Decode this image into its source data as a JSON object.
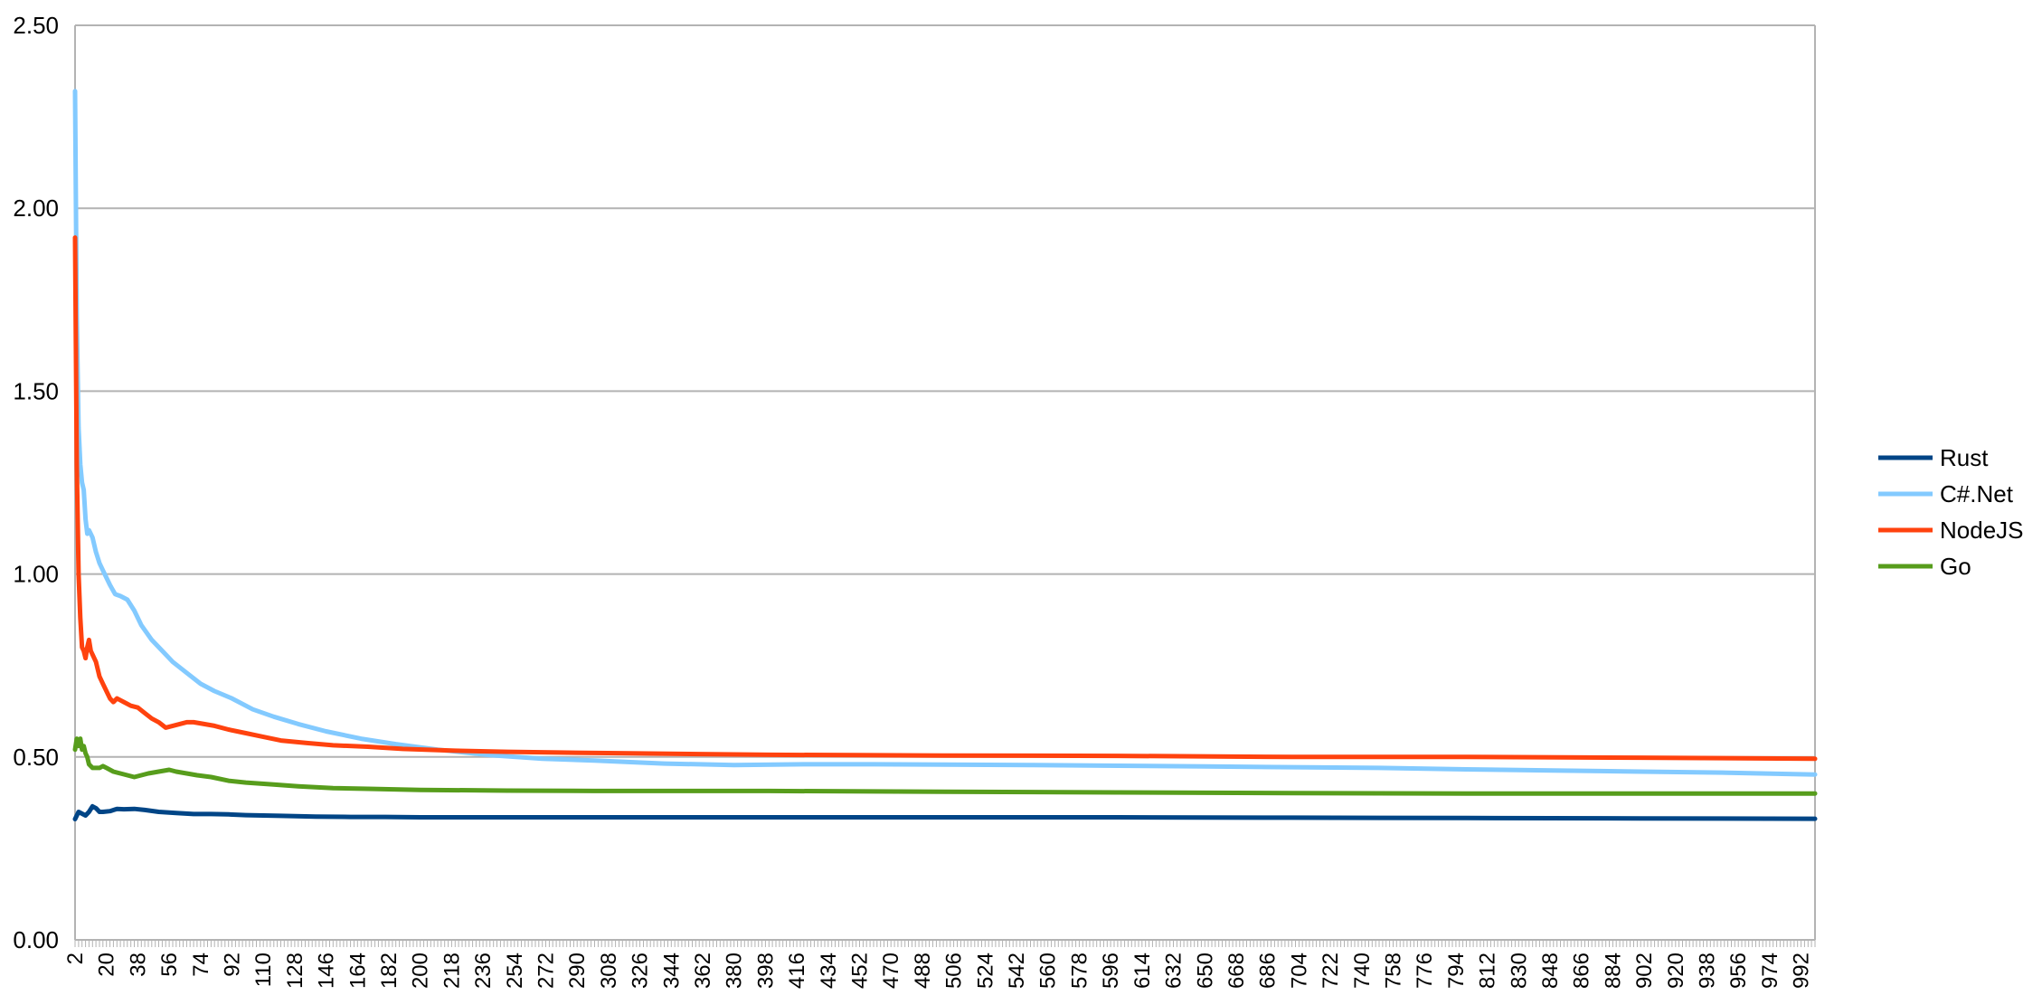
{
  "chart_data": {
    "type": "line",
    "title": "",
    "xlabel": "",
    "ylabel": "",
    "x_range": [
      2,
      1000
    ],
    "ylim": [
      0,
      2.5
    ],
    "y_ticks": [
      "0.00",
      "0.50",
      "1.00",
      "1.50",
      "2.00",
      "2.50"
    ],
    "x_tick_labels": [
      "2",
      "20",
      "38",
      "56",
      "74",
      "92",
      "110",
      "128",
      "146",
      "164",
      "182",
      "200",
      "218",
      "236",
      "254",
      "272",
      "290",
      "308",
      "326",
      "344",
      "362",
      "380",
      "398",
      "416",
      "434",
      "452",
      "470",
      "488",
      "506",
      "524",
      "542",
      "560",
      "578",
      "596",
      "614",
      "632",
      "650",
      "668",
      "686",
      "704",
      "722",
      "740",
      "758",
      "776",
      "794",
      "812",
      "830",
      "848",
      "866",
      "884",
      "902",
      "920",
      "938",
      "956",
      "974",
      "992"
    ],
    "grid": "horizontal",
    "legend": "right",
    "series": [
      {
        "name": "Rust",
        "color": "#004586",
        "points": [
          [
            2,
            0.33
          ],
          [
            4,
            0.35
          ],
          [
            6,
            0.345
          ],
          [
            8,
            0.34
          ],
          [
            10,
            0.35
          ],
          [
            12,
            0.365
          ],
          [
            14,
            0.36
          ],
          [
            16,
            0.35
          ],
          [
            18,
            0.35
          ],
          [
            22,
            0.352
          ],
          [
            26,
            0.358
          ],
          [
            30,
            0.357
          ],
          [
            36,
            0.358
          ],
          [
            42,
            0.355
          ],
          [
            50,
            0.35
          ],
          [
            60,
            0.347
          ],
          [
            70,
            0.344
          ],
          [
            80,
            0.344
          ],
          [
            90,
            0.343
          ],
          [
            100,
            0.341
          ],
          [
            120,
            0.339
          ],
          [
            140,
            0.337
          ],
          [
            160,
            0.336
          ],
          [
            180,
            0.336
          ],
          [
            200,
            0.335
          ],
          [
            250,
            0.335
          ],
          [
            300,
            0.335
          ],
          [
            350,
            0.335
          ],
          [
            400,
            0.335
          ],
          [
            500,
            0.335
          ],
          [
            600,
            0.335
          ],
          [
            700,
            0.334
          ],
          [
            800,
            0.333
          ],
          [
            900,
            0.332
          ],
          [
            1000,
            0.331
          ]
        ]
      },
      {
        "name": "C#.Net",
        "color": "#83caff",
        "points": [
          [
            2,
            2.32
          ],
          [
            3,
            1.7
          ],
          [
            4,
            1.4
          ],
          [
            5,
            1.3
          ],
          [
            6,
            1.25
          ],
          [
            7,
            1.23
          ],
          [
            8,
            1.15
          ],
          [
            9,
            1.11
          ],
          [
            10,
            1.12
          ],
          [
            12,
            1.1
          ],
          [
            14,
            1.06
          ],
          [
            16,
            1.03
          ],
          [
            18,
            1.01
          ],
          [
            20,
            0.99
          ],
          [
            22,
            0.97
          ],
          [
            25,
            0.945
          ],
          [
            28,
            0.94
          ],
          [
            32,
            0.93
          ],
          [
            36,
            0.9
          ],
          [
            40,
            0.86
          ],
          [
            46,
            0.82
          ],
          [
            52,
            0.79
          ],
          [
            58,
            0.76
          ],
          [
            66,
            0.73
          ],
          [
            74,
            0.7
          ],
          [
            82,
            0.68
          ],
          [
            92,
            0.66
          ],
          [
            104,
            0.63
          ],
          [
            116,
            0.61
          ],
          [
            130,
            0.59
          ],
          [
            146,
            0.57
          ],
          [
            166,
            0.55
          ],
          [
            186,
            0.535
          ],
          [
            210,
            0.52
          ],
          [
            240,
            0.505
          ],
          [
            270,
            0.495
          ],
          [
            300,
            0.49
          ],
          [
            340,
            0.482
          ],
          [
            380,
            0.478
          ],
          [
            420,
            0.48
          ],
          [
            460,
            0.48
          ],
          [
            500,
            0.479
          ],
          [
            550,
            0.478
          ],
          [
            600,
            0.476
          ],
          [
            650,
            0.474
          ],
          [
            700,
            0.472
          ],
          [
            750,
            0.47
          ],
          [
            800,
            0.466
          ],
          [
            850,
            0.463
          ],
          [
            900,
            0.46
          ],
          [
            950,
            0.457
          ],
          [
            1000,
            0.452
          ]
        ]
      },
      {
        "name": "NodeJS",
        "color": "#ff420e",
        "points": [
          [
            2,
            1.92
          ],
          [
            3,
            1.3
          ],
          [
            4,
            1.0
          ],
          [
            5,
            0.88
          ],
          [
            6,
            0.8
          ],
          [
            7,
            0.79
          ],
          [
            8,
            0.77
          ],
          [
            9,
            0.8
          ],
          [
            10,
            0.82
          ],
          [
            11,
            0.79
          ],
          [
            12,
            0.78
          ],
          [
            14,
            0.76
          ],
          [
            16,
            0.72
          ],
          [
            18,
            0.7
          ],
          [
            20,
            0.68
          ],
          [
            22,
            0.66
          ],
          [
            24,
            0.65
          ],
          [
            26,
            0.66
          ],
          [
            28,
            0.655
          ],
          [
            30,
            0.65
          ],
          [
            34,
            0.64
          ],
          [
            38,
            0.635
          ],
          [
            42,
            0.62
          ],
          [
            46,
            0.605
          ],
          [
            50,
            0.595
          ],
          [
            54,
            0.58
          ],
          [
            58,
            0.585
          ],
          [
            62,
            0.59
          ],
          [
            66,
            0.595
          ],
          [
            70,
            0.595
          ],
          [
            76,
            0.59
          ],
          [
            82,
            0.585
          ],
          [
            90,
            0.575
          ],
          [
            100,
            0.565
          ],
          [
            110,
            0.555
          ],
          [
            120,
            0.545
          ],
          [
            135,
            0.538
          ],
          [
            150,
            0.532
          ],
          [
            170,
            0.528
          ],
          [
            190,
            0.522
          ],
          [
            220,
            0.517
          ],
          [
            250,
            0.514
          ],
          [
            280,
            0.512
          ],
          [
            320,
            0.51
          ],
          [
            360,
            0.508
          ],
          [
            400,
            0.506
          ],
          [
            450,
            0.505
          ],
          [
            500,
            0.504
          ],
          [
            600,
            0.503
          ],
          [
            700,
            0.5
          ],
          [
            800,
            0.5
          ],
          [
            900,
            0.498
          ],
          [
            1000,
            0.495
          ]
        ]
      },
      {
        "name": "Go",
        "color": "#579d1c",
        "points": [
          [
            2,
            0.52
          ],
          [
            3,
            0.55
          ],
          [
            4,
            0.53
          ],
          [
            5,
            0.55
          ],
          [
            6,
            0.52
          ],
          [
            7,
            0.53
          ],
          [
            8,
            0.51
          ],
          [
            9,
            0.5
          ],
          [
            10,
            0.48
          ],
          [
            12,
            0.47
          ],
          [
            14,
            0.47
          ],
          [
            16,
            0.47
          ],
          [
            18,
            0.475
          ],
          [
            20,
            0.47
          ],
          [
            24,
            0.46
          ],
          [
            28,
            0.455
          ],
          [
            32,
            0.45
          ],
          [
            36,
            0.445
          ],
          [
            40,
            0.45
          ],
          [
            44,
            0.455
          ],
          [
            50,
            0.46
          ],
          [
            56,
            0.465
          ],
          [
            60,
            0.46
          ],
          [
            66,
            0.455
          ],
          [
            72,
            0.45
          ],
          [
            80,
            0.445
          ],
          [
            90,
            0.435
          ],
          [
            100,
            0.43
          ],
          [
            115,
            0.425
          ],
          [
            130,
            0.42
          ],
          [
            150,
            0.415
          ],
          [
            170,
            0.413
          ],
          [
            200,
            0.41
          ],
          [
            250,
            0.408
          ],
          [
            300,
            0.407
          ],
          [
            350,
            0.407
          ],
          [
            400,
            0.407
          ],
          [
            500,
            0.405
          ],
          [
            600,
            0.403
          ],
          [
            700,
            0.401
          ],
          [
            800,
            0.4
          ],
          [
            900,
            0.4
          ],
          [
            1000,
            0.4
          ]
        ]
      }
    ]
  }
}
